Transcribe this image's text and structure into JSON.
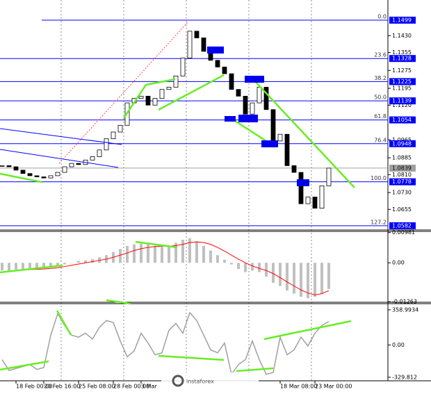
{
  "chart_data": [
    {
      "type": "price",
      "color": "#000000",
      "level_color": "#0000ff",
      "current_color": "#a0a0a0",
      "watermark": "instaforex",
      "categories": [
        null,
        null,
        "18 Feb 00:00",
        null,
        null,
        null,
        "20 Feb 16:00",
        null,
        null,
        null,
        null,
        "25 Feb 08:00",
        null,
        null,
        null,
        null,
        "28 Feb 00:00",
        null,
        null,
        null,
        "3 Mar",
        null,
        null,
        null,
        null,
        null,
        null,
        null,
        null,
        null,
        null,
        null,
        null,
        null,
        null,
        null,
        null,
        null,
        null,
        null,
        "18 Mar 08:00",
        null,
        null,
        null,
        null,
        "23 Mar 00:00",
        null,
        null
      ],
      "values": [
        1.085,
        1.0845,
        1.083,
        1.0815,
        1.0805,
        1.08,
        1.0795,
        1.0805,
        1.082,
        1.0845,
        1.086,
        1.0855,
        1.0875,
        1.089,
        1.092,
        1.097,
        1.1,
        1.103,
        1.113,
        1.115,
        1.116,
        1.112,
        1.115,
        1.119,
        1.12,
        1.125,
        1.133,
        1.145,
        1.142,
        1.136,
        1.132,
        1.129,
        1.126,
        1.119,
        1.116,
        1.108,
        1.113,
        1.12,
        1.11,
        1.096,
        1.099,
        1.085,
        1.082,
        1.068,
        1.071,
        1.066,
        1.076,
        1.0839
      ],
      "ylim": [
        1.0566,
        1.1589
      ],
      "yticks": [
        {
          "value": 1.143,
          "label": "1.1430"
        },
        1.1355,
        1.1275,
        1.1195,
        {
          "value": 1.112,
          "label": "1.1120"
        },
        1.0965,
        1.0885,
        {
          "value": 1.081,
          "label": "1.0810"
        },
        {
          "value": 1.073,
          "label": "1.0730"
        },
        1.0655
      ],
      "levels": [
        {
          "label": "0.0",
          "value": 1.1499
        },
        {
          "label": "23.6",
          "value": 1.1328
        },
        {
          "label": "38.2",
          "value": 1.1225
        },
        {
          "label": "50.0",
          "value": 1.1139
        },
        {
          "label": "61.8",
          "value": 1.1054
        },
        {
          "label": "76.4",
          "value": 1.0948
        },
        {
          "label": "100.0",
          "value": 1.0778
        },
        {
          "label": "127.2",
          "value": 1.0582
        }
      ],
      "current_price": 1.0839
    },
    {
      "type": "macd",
      "color": "#c0c0c0",
      "signal_color": "#ff0000",
      "histogram": [
        -0.0025,
        -0.0025,
        -0.0022,
        -0.002,
        -0.002,
        -0.002,
        -0.0018,
        -0.0015,
        -0.001,
        -0.0005,
        0,
        0.0005,
        0.0008,
        0.0012,
        0.0018,
        0.0025,
        0.0035,
        0.0045,
        0.0055,
        0.006,
        0.0062,
        0.006,
        0.0055,
        0.0052,
        0.0055,
        0.0065,
        0.0075,
        0.008,
        0.007,
        0.0055,
        0.004,
        0.0025,
        0.001,
        -0.0005,
        -0.002,
        -0.003,
        -0.0025,
        -0.003,
        -0.0045,
        -0.0065,
        -0.0075,
        -0.009,
        -0.01,
        -0.011,
        -0.0115,
        -0.011,
        -0.01,
        -0.0085
      ],
      "signal": [
        -0.003,
        -0.0028,
        -0.0026,
        -0.0024,
        -0.0022,
        -0.0021,
        -0.002,
        -0.0018,
        -0.0016,
        -0.0012,
        -0.0008,
        -0.0004,
        0,
        0.0004,
        0.0008,
        0.0012,
        0.0018,
        0.0025,
        0.0032,
        0.004,
        0.0046,
        0.005,
        0.0053,
        0.0054,
        0.0054,
        0.0056,
        0.006,
        0.0066,
        0.0068,
        0.0066,
        0.006,
        0.005,
        0.0038,
        0.0025,
        0.0012,
        0,
        -0.001,
        -0.0018,
        -0.0025,
        -0.0035,
        -0.0048,
        -0.0062,
        -0.0075,
        -0.0088,
        -0.0098,
        -0.0104,
        -0.01,
        -0.009
      ],
      "ylim": [
        -0.0128,
        0.0102
      ],
      "yticks": [
        0.00981,
        {
          "value": 0,
          "label": "0.00"
        },
        -0.01263
      ]
    },
    {
      "type": "cci",
      "color": "#a0a0a0",
      "values": [
        -150,
        -260,
        -240,
        -220,
        -200,
        -250,
        -230,
        100,
        320,
        200,
        100,
        80,
        120,
        60,
        180,
        250,
        230,
        40,
        -120,
        -60,
        120,
        20,
        -100,
        -80,
        150,
        220,
        120,
        330,
        250,
        100,
        -50,
        -80,
        20,
        -300,
        -200,
        -150,
        40,
        -150,
        -300,
        -280,
        80,
        -100,
        -50,
        80,
        -10,
        120,
        200,
        240
      ],
      "ylim": [
        -366,
        415
      ],
      "yticks": [
        358.9934,
        {
          "value": 0,
          "label": "0.00"
        },
        -329.812
      ]
    }
  ]
}
